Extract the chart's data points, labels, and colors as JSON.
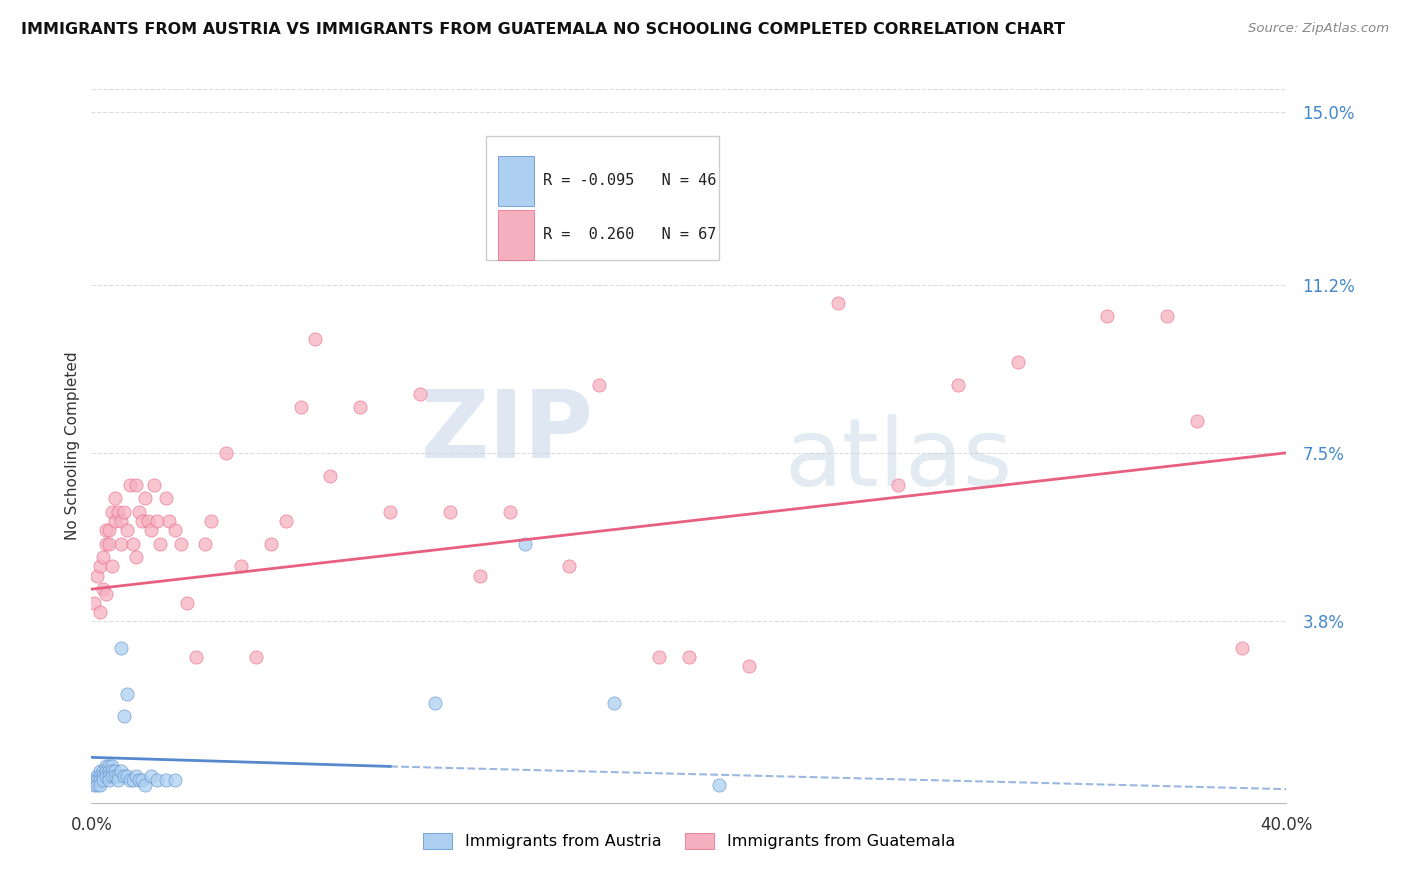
{
  "title": "IMMIGRANTS FROM AUSTRIA VS IMMIGRANTS FROM GUATEMALA NO SCHOOLING COMPLETED CORRELATION CHART",
  "source": "Source: ZipAtlas.com",
  "ylabel": "No Schooling Completed",
  "legend_label_austria": "Immigrants from Austria",
  "legend_label_guatemala": "Immigrants from Guatemala",
  "austria_R": -0.095,
  "austria_N": 46,
  "guatemala_R": 0.26,
  "guatemala_N": 67,
  "austria_color": "#add0f0",
  "guatemala_color": "#f5b0c0",
  "austria_line_color": "#5588cc",
  "guatemala_line_color": "#e86080",
  "xlim": [
    0.0,
    0.4
  ],
  "ylim": [
    -0.002,
    0.155
  ],
  "yticks": [
    0.0,
    0.038,
    0.075,
    0.112,
    0.15
  ],
  "ytick_labels": [
    "",
    "3.8%",
    "7.5%",
    "11.2%",
    "15.0%"
  ],
  "xtick_labels": [
    "0.0%",
    "40.0%"
  ],
  "xtick_positions": [
    0.0,
    0.4
  ],
  "austria_x": [
    0.001,
    0.001,
    0.002,
    0.002,
    0.002,
    0.003,
    0.003,
    0.003,
    0.003,
    0.004,
    0.004,
    0.004,
    0.005,
    0.005,
    0.005,
    0.006,
    0.006,
    0.006,
    0.006,
    0.007,
    0.007,
    0.007,
    0.008,
    0.008,
    0.009,
    0.009,
    0.01,
    0.01,
    0.011,
    0.011,
    0.012,
    0.012,
    0.013,
    0.014,
    0.015,
    0.016,
    0.017,
    0.018,
    0.02,
    0.022,
    0.025,
    0.028,
    0.115,
    0.145,
    0.175,
    0.21
  ],
  "austria_y": [
    0.003,
    0.002,
    0.004,
    0.003,
    0.002,
    0.005,
    0.004,
    0.003,
    0.002,
    0.005,
    0.004,
    0.003,
    0.006,
    0.005,
    0.004,
    0.006,
    0.005,
    0.004,
    0.003,
    0.006,
    0.005,
    0.004,
    0.005,
    0.004,
    0.004,
    0.003,
    0.032,
    0.005,
    0.017,
    0.004,
    0.022,
    0.004,
    0.003,
    0.003,
    0.004,
    0.003,
    0.003,
    0.002,
    0.004,
    0.003,
    0.003,
    0.003,
    0.02,
    0.055,
    0.02,
    0.002
  ],
  "guatemala_x": [
    0.001,
    0.002,
    0.003,
    0.003,
    0.004,
    0.004,
    0.005,
    0.005,
    0.005,
    0.006,
    0.006,
    0.007,
    0.007,
    0.008,
    0.008,
    0.009,
    0.01,
    0.01,
    0.011,
    0.012,
    0.013,
    0.014,
    0.015,
    0.015,
    0.016,
    0.017,
    0.018,
    0.019,
    0.02,
    0.021,
    0.022,
    0.023,
    0.025,
    0.026,
    0.028,
    0.03,
    0.032,
    0.035,
    0.038,
    0.04,
    0.045,
    0.05,
    0.055,
    0.06,
    0.065,
    0.07,
    0.075,
    0.08,
    0.09,
    0.1,
    0.11,
    0.12,
    0.13,
    0.14,
    0.16,
    0.17,
    0.19,
    0.2,
    0.22,
    0.25,
    0.27,
    0.29,
    0.31,
    0.34,
    0.36,
    0.37,
    0.385
  ],
  "guatemala_y": [
    0.042,
    0.048,
    0.05,
    0.04,
    0.052,
    0.045,
    0.058,
    0.055,
    0.044,
    0.058,
    0.055,
    0.062,
    0.05,
    0.065,
    0.06,
    0.062,
    0.06,
    0.055,
    0.062,
    0.058,
    0.068,
    0.055,
    0.068,
    0.052,
    0.062,
    0.06,
    0.065,
    0.06,
    0.058,
    0.068,
    0.06,
    0.055,
    0.065,
    0.06,
    0.058,
    0.055,
    0.042,
    0.03,
    0.055,
    0.06,
    0.075,
    0.05,
    0.03,
    0.055,
    0.06,
    0.085,
    0.1,
    0.07,
    0.085,
    0.062,
    0.088,
    0.062,
    0.048,
    0.062,
    0.05,
    0.09,
    0.03,
    0.03,
    0.028,
    0.108,
    0.068,
    0.09,
    0.095,
    0.105,
    0.105,
    0.082,
    0.032
  ],
  "austria_line_start_x": 0.0,
  "austria_line_start_y": 0.008,
  "austria_line_end_solid_x": 0.1,
  "austria_line_end_solid_y": 0.006,
  "austria_line_end_dash_x": 0.4,
  "austria_line_end_dash_y": 0.001,
  "guatemala_line_start_x": 0.0,
  "guatemala_line_start_y": 0.045,
  "guatemala_line_end_x": 0.4,
  "guatemala_line_end_y": 0.075,
  "watermark_zip": "ZIP",
  "watermark_atlas": "atlas",
  "background_color": "#ffffff",
  "grid_color": "#dddddd"
}
